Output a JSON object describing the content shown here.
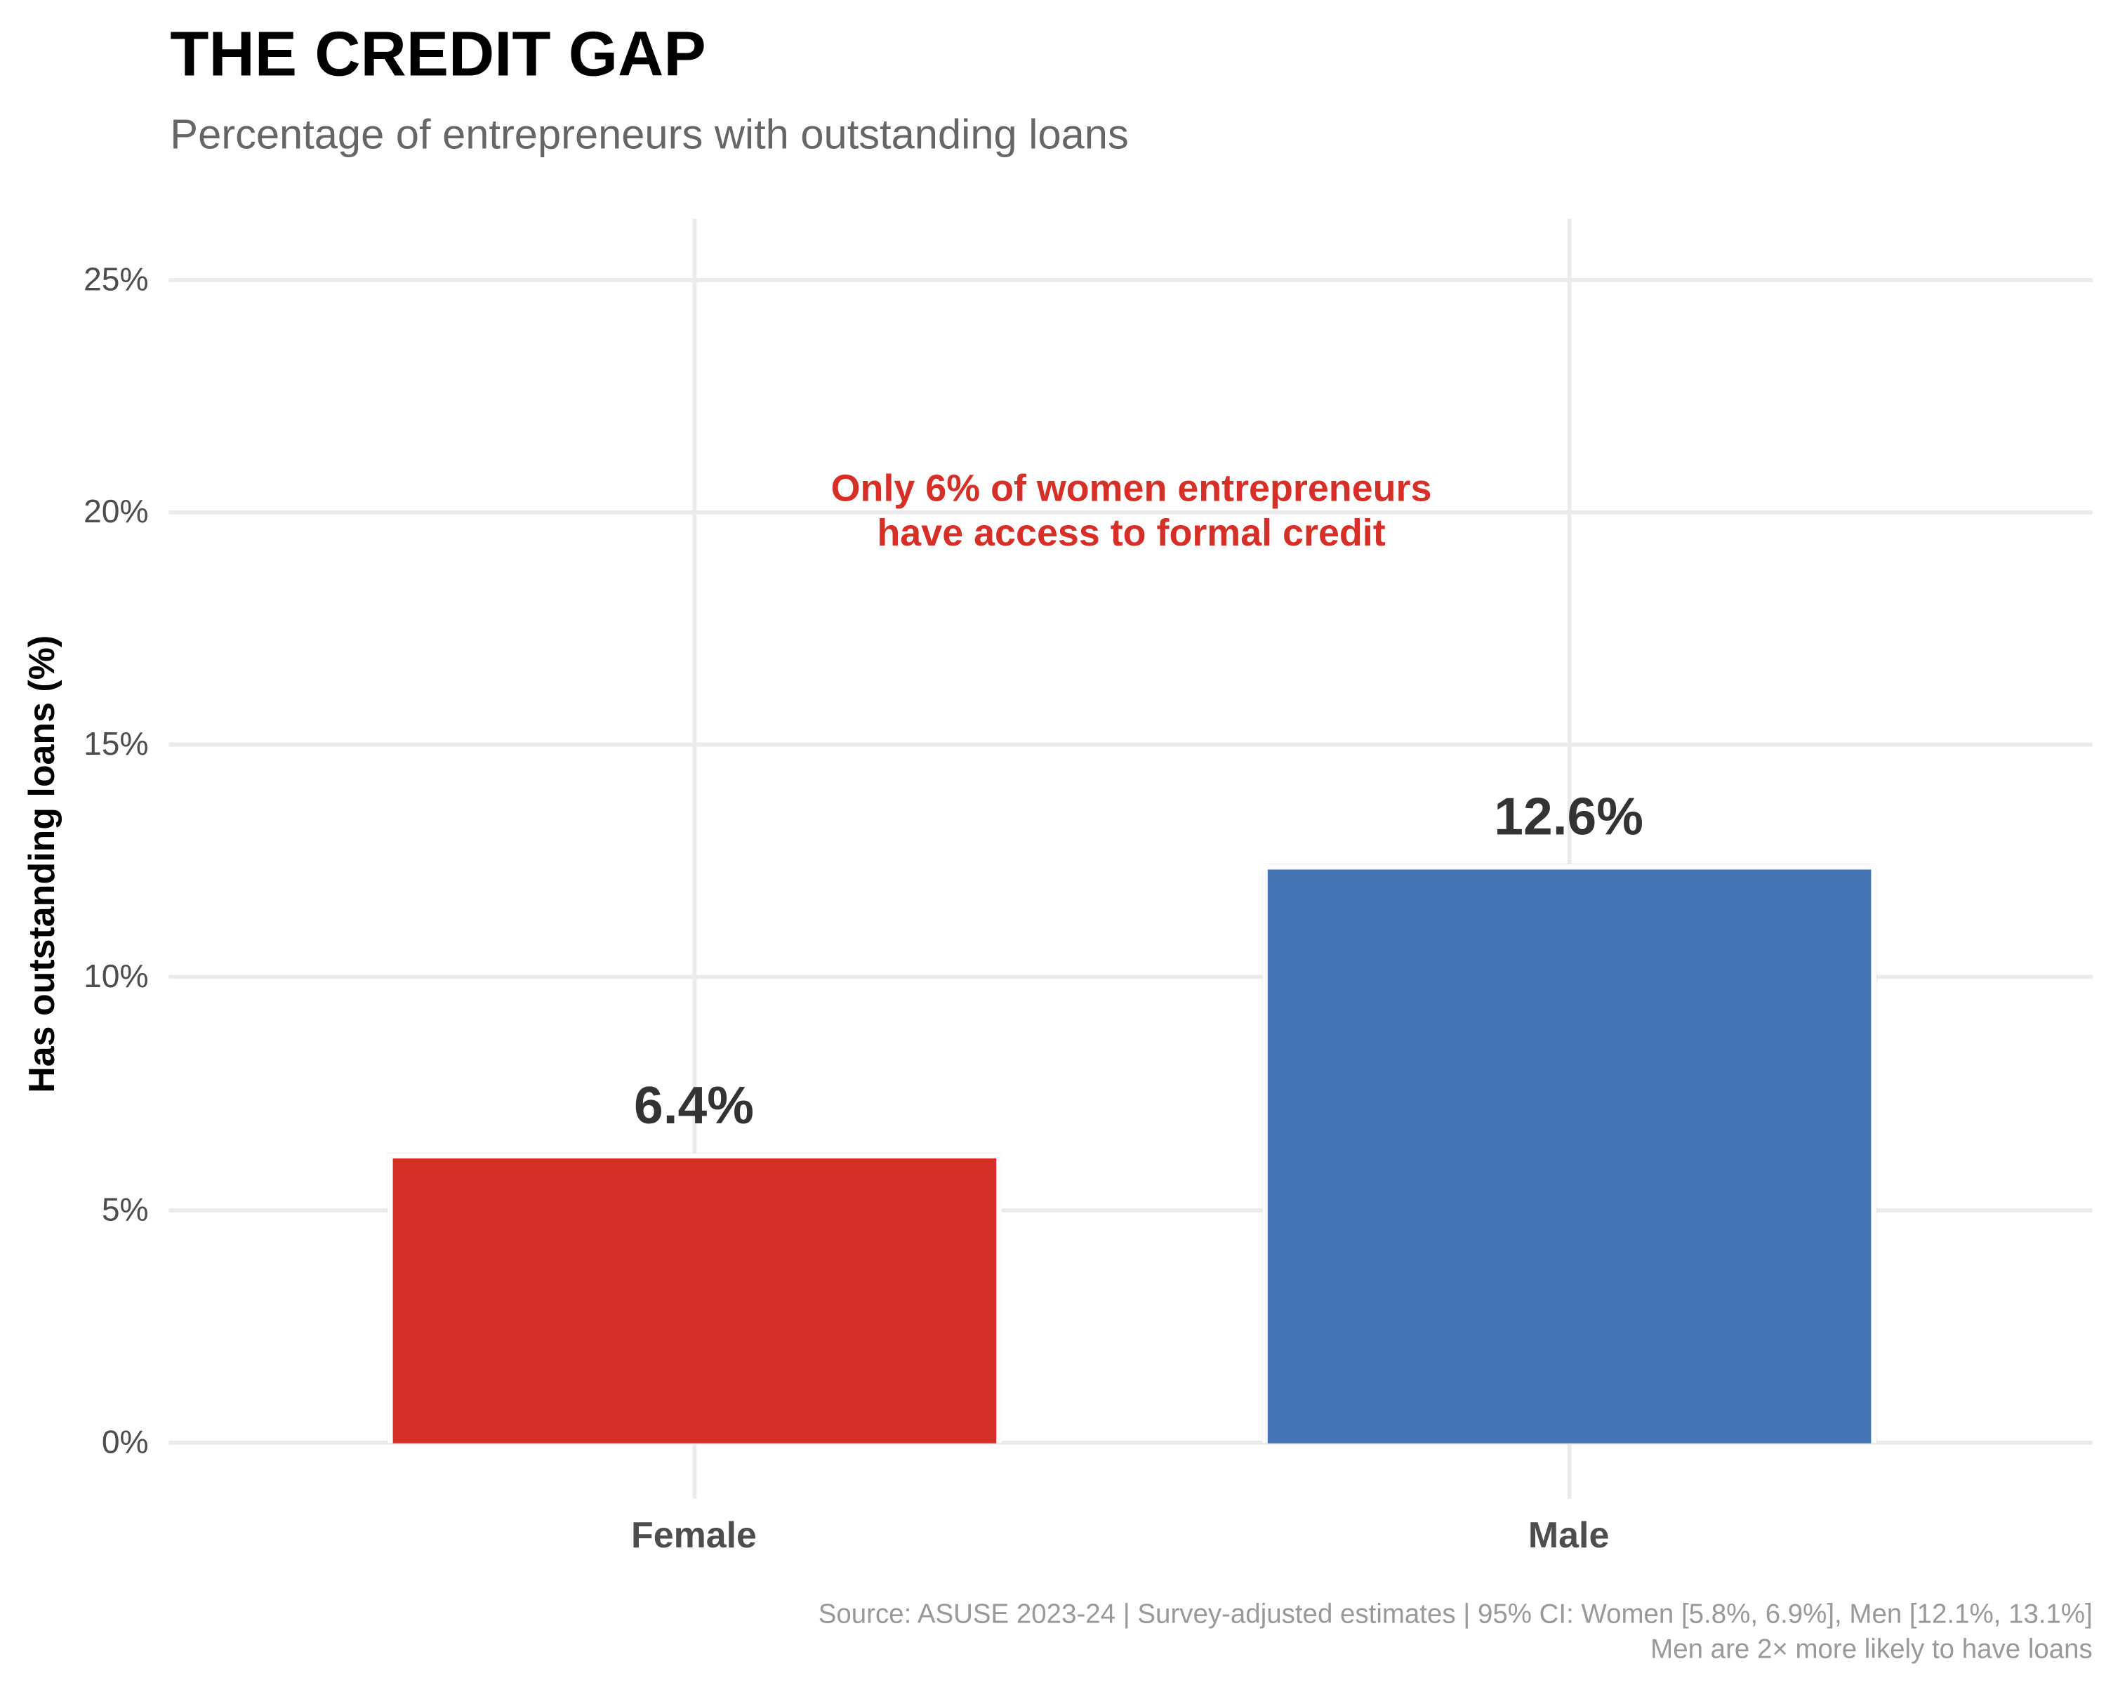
{
  "header": {
    "title": "THE CREDIT GAP",
    "subtitle": "Percentage of entrepreneurs with outstanding loans"
  },
  "annotation": {
    "line1": "Only 6% of women entrepreneurs",
    "line2": "have access to formal credit",
    "color": "#d62f27"
  },
  "caption": {
    "line1": "Source: ASUSE 2023-24 | Survey-adjusted estimates | 95% CI: Women [5.8%, 6.9%], Men [12.1%, 13.1%]",
    "line2": "Men are 2× more likely to have loans"
  },
  "axes": {
    "ylabel": "Has outstanding loans (%)",
    "yticks": [
      "0%",
      "5%",
      "10%",
      "15%",
      "20%",
      "25%"
    ],
    "xticks": [
      "Female",
      "Male"
    ]
  },
  "bars": [
    {
      "category": "Female",
      "value": 6.4,
      "label": "6.4%",
      "color": "#d62f27"
    },
    {
      "category": "Male",
      "value": 12.6,
      "label": "12.6%",
      "color": "#4575b4"
    }
  ],
  "chart_data": {
    "type": "bar",
    "title": "THE CREDIT GAP",
    "subtitle": "Percentage of entrepreneurs with outstanding loans",
    "categories": [
      "Female",
      "Male"
    ],
    "values": [
      6.4,
      12.6
    ],
    "data_labels": [
      "6.4%",
      "12.6%"
    ],
    "colors": [
      "#d62f27",
      "#4575b4"
    ],
    "confidence_intervals": {
      "Female": [
        5.8,
        6.9
      ],
      "Male": [
        12.1,
        13.1
      ]
    },
    "xlabel": "",
    "ylabel": "Has outstanding loans (%)",
    "ylim": [
      0,
      26
    ],
    "yticks": [
      0,
      5,
      10,
      15,
      20,
      25
    ],
    "ytick_labels": [
      "0%",
      "5%",
      "10%",
      "15%",
      "20%",
      "25%"
    ],
    "grid": true,
    "legend": "none",
    "annotations": [
      "Only 6% of women entrepreneurs have access to formal credit"
    ],
    "caption": "Source: ASUSE 2023-24 | Survey-adjusted estimates | 95% CI: Women [5.8%, 6.9%], Men [12.1%, 13.1%] / Men are 2× more likely to have loans"
  }
}
